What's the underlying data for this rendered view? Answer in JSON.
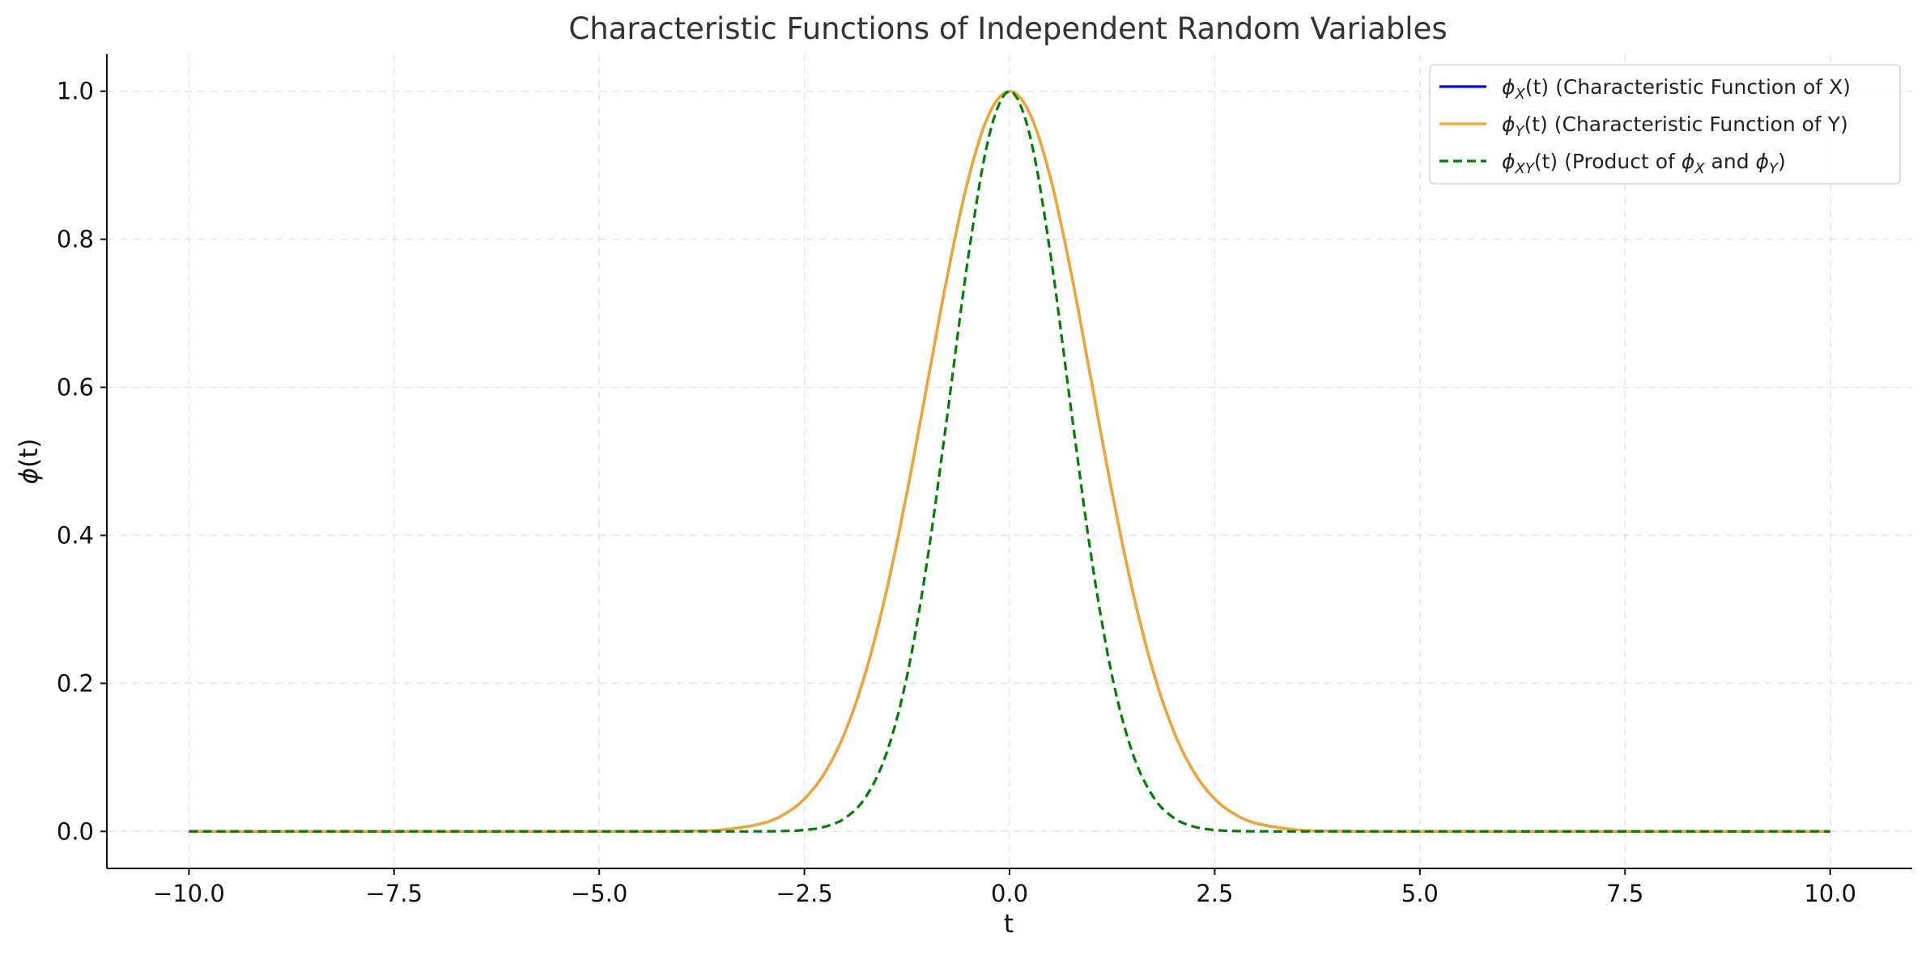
{
  "chart_data": {
    "type": "line",
    "title": "Characteristic Functions of Independent Random Variables",
    "xlabel": "t",
    "ylabel_symbol": "ϕ",
    "ylabel_arg": "(t)",
    "xlim": [
      -11.0,
      11.0
    ],
    "ylim": [
      -0.05,
      1.05
    ],
    "x_ticks": [
      -10.0,
      -7.5,
      -5.0,
      -2.5,
      0.0,
      2.5,
      5.0,
      7.5,
      10.0
    ],
    "x_tick_labels": [
      "−10.0",
      "−7.5",
      "−5.0",
      "−2.5",
      "0.0",
      "2.5",
      "5.0",
      "7.5",
      "10.0"
    ],
    "y_ticks": [
      0.0,
      0.2,
      0.4,
      0.6,
      0.8,
      1.0
    ],
    "y_tick_labels": [
      "0.0",
      "0.2",
      "0.4",
      "0.6",
      "0.8",
      "1.0"
    ],
    "grid": true,
    "legend_position": "top-right",
    "x": [
      -10.0,
      -4.0,
      -3.5,
      -3.0,
      -2.75,
      -2.5,
      -2.25,
      -2.0,
      -1.75,
      -1.5,
      -1.25,
      -1.0,
      -0.75,
      -0.5,
      -0.25,
      0.0,
      0.25,
      0.5,
      0.75,
      1.0,
      1.25,
      1.5,
      1.75,
      2.0,
      2.25,
      2.5,
      2.75,
      3.0,
      3.5,
      4.0,
      10.0
    ],
    "series": [
      {
        "key": "phi-x",
        "legend_sub": "X",
        "legend_rest": "(t) (Characteristic Function of X)",
        "color": "#0000ff",
        "dash": "solid",
        "values": [
          0.0,
          0.0003,
          0.0022,
          0.0111,
          0.0228,
          0.0439,
          0.0796,
          0.1353,
          0.2163,
          0.3247,
          0.4578,
          0.6065,
          0.7548,
          0.8825,
          0.9692,
          1.0,
          0.9692,
          0.8825,
          0.7548,
          0.6065,
          0.4578,
          0.3247,
          0.2163,
          0.1353,
          0.0796,
          0.0439,
          0.0228,
          0.0111,
          0.0022,
          0.0003,
          0.0
        ]
      },
      {
        "key": "phi-y",
        "legend_sub": "Y",
        "legend_rest": "(t) (Characteristic Function of Y)",
        "color": "#f5a623",
        "dash": "solid",
        "values": [
          0.0,
          0.0003,
          0.0022,
          0.0111,
          0.0228,
          0.0439,
          0.0796,
          0.1353,
          0.2163,
          0.3247,
          0.4578,
          0.6065,
          0.7548,
          0.8825,
          0.9692,
          1.0,
          0.9692,
          0.8825,
          0.7548,
          0.6065,
          0.4578,
          0.3247,
          0.2163,
          0.1353,
          0.0796,
          0.0439,
          0.0228,
          0.0111,
          0.0022,
          0.0003,
          0.0
        ]
      },
      {
        "key": "phi-xy",
        "legend_sub": "XY",
        "legend_rest": "(t) (Product of ",
        "legend_tail_parts": [
          {
            "text": "ϕ",
            "italic": true
          },
          {
            "text": "X",
            "italic": true,
            "sub": true
          },
          {
            "text": " and "
          },
          {
            "text": "ϕ",
            "italic": true
          },
          {
            "text": "Y",
            "italic": true,
            "sub": true
          },
          {
            "text": ")"
          }
        ],
        "color": "#008000",
        "dash": "dashed",
        "values": [
          0.0,
          0.0,
          0.0,
          0.0001,
          0.0005,
          0.0019,
          0.0063,
          0.0183,
          0.0468,
          0.1054,
          0.2096,
          0.3679,
          0.5698,
          0.7788,
          0.9394,
          1.0,
          0.9394,
          0.7788,
          0.5698,
          0.3679,
          0.2096,
          0.1054,
          0.0468,
          0.0183,
          0.0063,
          0.0019,
          0.0005,
          0.0001,
          0.0,
          0.0,
          0.0
        ]
      }
    ]
  }
}
